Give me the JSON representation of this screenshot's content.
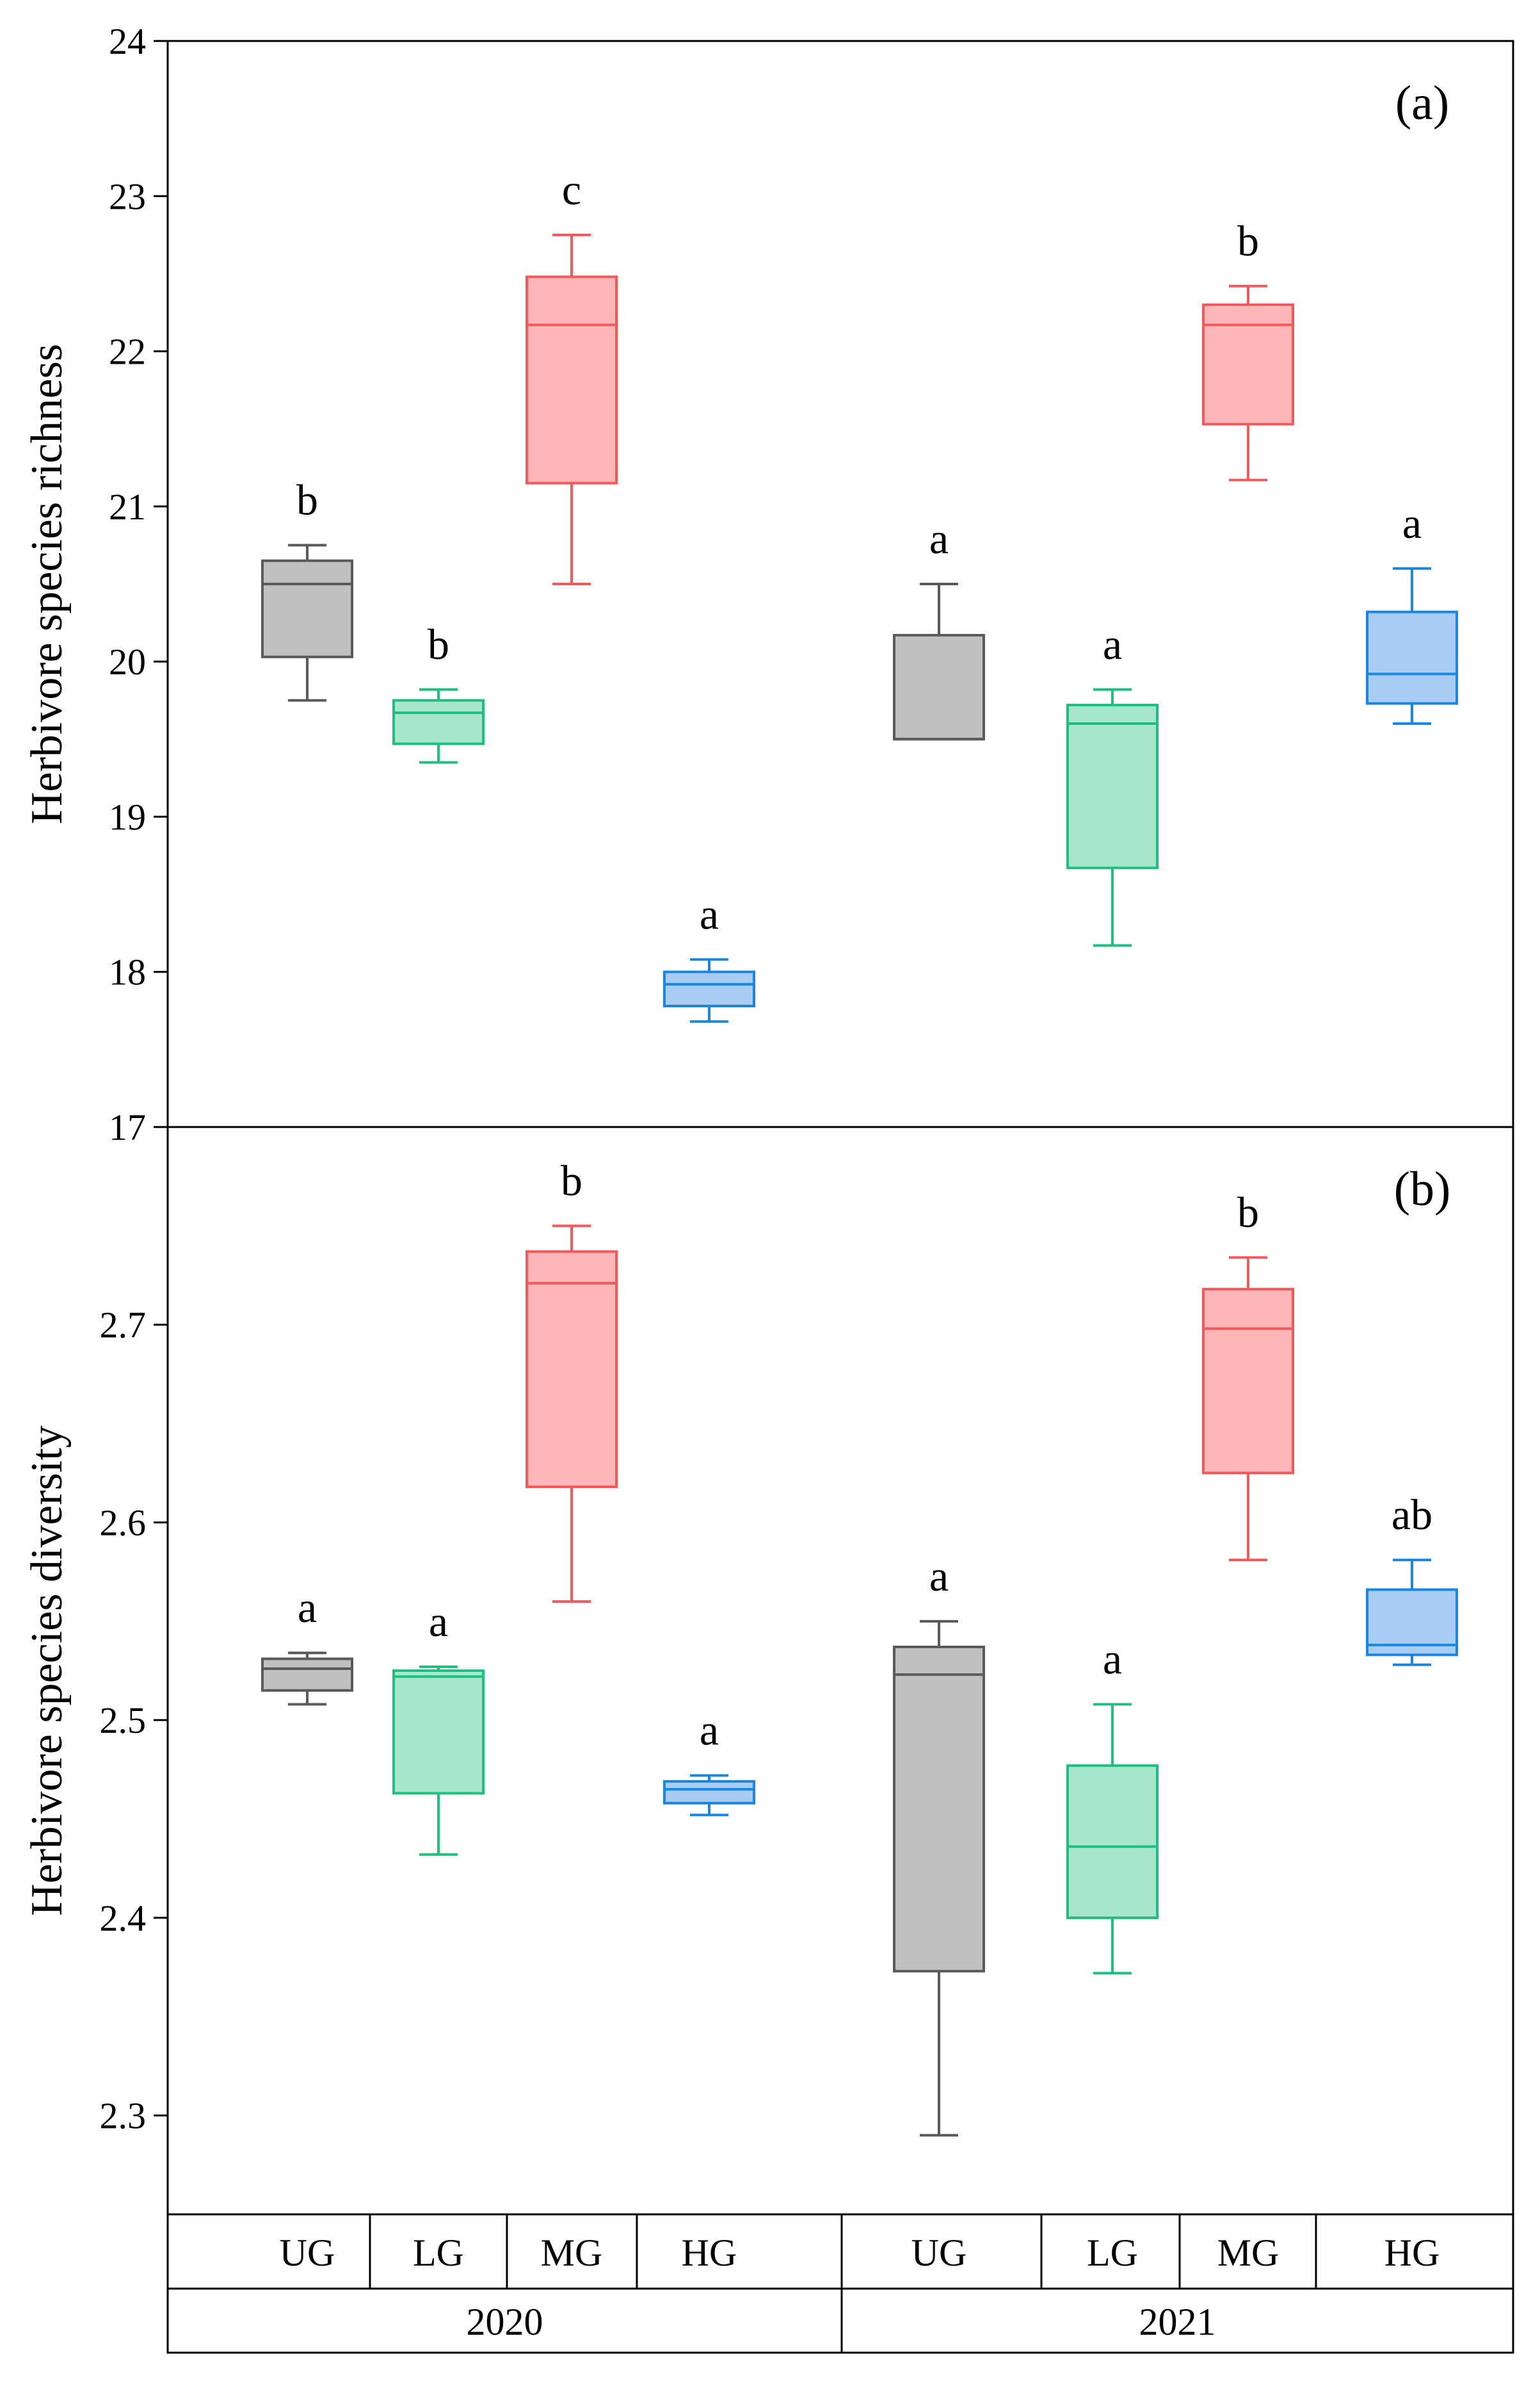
{
  "chart_data": [
    {
      "type": "box",
      "panel_label": "(a)",
      "ylabel": "Herbivore species richness",
      "ylim": [
        17,
        24
      ],
      "yticks": [
        "17",
        "18",
        "19",
        "20",
        "21",
        "22",
        "23",
        "24"
      ],
      "ytick_values": [
        17,
        18,
        19,
        20,
        21,
        22,
        23,
        24
      ],
      "grid": false,
      "boxes": [
        {
          "year": "2020",
          "group": "UG",
          "color": "gray",
          "min": 19.75,
          "q1": 20.03,
          "median": 20.5,
          "q3": 20.65,
          "max": 20.75,
          "letter": "b"
        },
        {
          "year": "2020",
          "group": "LG",
          "color": "green",
          "min": 19.35,
          "q1": 19.47,
          "median": 19.67,
          "q3": 19.75,
          "max": 19.82,
          "letter": "b"
        },
        {
          "year": "2020",
          "group": "MG",
          "color": "red",
          "min": 20.5,
          "q1": 21.15,
          "median": 22.17,
          "q3": 22.48,
          "max": 22.75,
          "letter": "c"
        },
        {
          "year": "2020",
          "group": "HG",
          "color": "blue",
          "min": 17.68,
          "q1": 17.78,
          "median": 17.92,
          "q3": 18.0,
          "max": 18.08,
          "letter": "a"
        },
        {
          "year": "2021",
          "group": "UG",
          "color": "gray",
          "min": 19.5,
          "q1": 19.5,
          "median": 19.5,
          "q3": 20.17,
          "max": 20.5,
          "letter": "a"
        },
        {
          "year": "2021",
          "group": "LG",
          "color": "green",
          "min": 18.17,
          "q1": 18.67,
          "median": 19.6,
          "q3": 19.72,
          "max": 19.82,
          "letter": "a"
        },
        {
          "year": "2021",
          "group": "MG",
          "color": "red",
          "min": 21.17,
          "q1": 21.53,
          "median": 22.17,
          "q3": 22.3,
          "max": 22.42,
          "letter": "b"
        },
        {
          "year": "2021",
          "group": "HG",
          "color": "blue",
          "min": 19.6,
          "q1": 19.73,
          "median": 19.92,
          "q3": 20.32,
          "max": 20.6,
          "letter": "a"
        }
      ]
    },
    {
      "type": "box",
      "panel_label": "(b)",
      "ylabel": "Herbivore species diversity",
      "ylim": [
        2.25,
        2.8
      ],
      "yticks": [
        "2.3",
        "2.4",
        "2.5",
        "2.6",
        "2.7"
      ],
      "ytick_values": [
        2.3,
        2.4,
        2.5,
        2.6,
        2.7
      ],
      "grid": false,
      "boxes": [
        {
          "year": "2020",
          "group": "UG",
          "color": "gray",
          "min": 2.508,
          "q1": 2.515,
          "median": 2.526,
          "q3": 2.531,
          "max": 2.534,
          "letter": "a"
        },
        {
          "year": "2020",
          "group": "LG",
          "color": "green",
          "min": 2.432,
          "q1": 2.463,
          "median": 2.522,
          "q3": 2.525,
          "max": 2.527,
          "letter": "a"
        },
        {
          "year": "2020",
          "group": "MG",
          "color": "red",
          "min": 2.56,
          "q1": 2.618,
          "median": 2.721,
          "q3": 2.737,
          "max": 2.75,
          "letter": "b"
        },
        {
          "year": "2020",
          "group": "HG",
          "color": "blue",
          "min": 2.452,
          "q1": 2.458,
          "median": 2.465,
          "q3": 2.469,
          "max": 2.472,
          "letter": "a"
        },
        {
          "year": "2021",
          "group": "UG",
          "color": "gray",
          "min": 2.29,
          "q1": 2.373,
          "median": 2.523,
          "q3": 2.537,
          "max": 2.55,
          "letter": "a"
        },
        {
          "year": "2021",
          "group": "LG",
          "color": "green",
          "min": 2.372,
          "q1": 2.4,
          "median": 2.436,
          "q3": 2.477,
          "max": 2.508,
          "letter": "a"
        },
        {
          "year": "2021",
          "group": "MG",
          "color": "red",
          "min": 2.581,
          "q1": 2.625,
          "median": 2.698,
          "q3": 2.718,
          "max": 2.734,
          "letter": "b"
        },
        {
          "year": "2021",
          "group": "HG",
          "color": "blue",
          "min": 2.528,
          "q1": 2.533,
          "median": 2.538,
          "q3": 2.566,
          "max": 2.581,
          "letter": "ab"
        }
      ]
    }
  ],
  "x_axis": {
    "groups": [
      "UG",
      "LG",
      "MG",
      "HG",
      "UG",
      "LG",
      "MG",
      "HG"
    ],
    "years": [
      "2020",
      "2021"
    ]
  },
  "colors": {
    "gray": {
      "fill": "#c0c0c0",
      "stroke": "#5a5a5a"
    },
    "green": {
      "fill": "#a8e6cc",
      "stroke": "#1fbf80"
    },
    "red": {
      "fill": "#ffb6b8",
      "stroke": "#f05a5a"
    },
    "blue": {
      "fill": "#a7cdf3",
      "stroke": "#1a86e0"
    }
  }
}
